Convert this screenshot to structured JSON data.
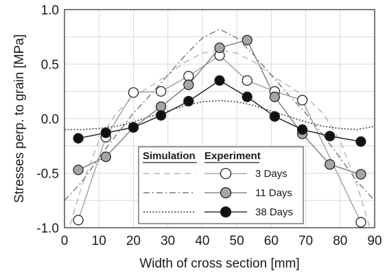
{
  "chart_data": {
    "type": "line",
    "title": "",
    "xlabel": "Width of cross section [mm]",
    "ylabel": "Stresses perp. to grain [MPa]",
    "xlim": [
      0,
      90
    ],
    "ylim": [
      -1.0,
      1.0
    ],
    "x_ticks": [
      "0",
      "10",
      "20",
      "30",
      "40",
      "50",
      "60",
      "70",
      "80",
      "90"
    ],
    "y_ticks": [
      "-1.0",
      "-0.5",
      "0.0",
      "0.5",
      "1.0"
    ],
    "grid": true,
    "legend": {
      "position": "bottom-center",
      "header_simulation": "Simulation",
      "header_experiment": "Experiment",
      "entries": [
        "3 Days",
        "11 Days",
        "38 Days"
      ]
    },
    "experiment_series": [
      {
        "name": "3 Days",
        "marker_fill": "#ffffff",
        "line_color": "#a8a8a8",
        "x": [
          4,
          12,
          20,
          28,
          36,
          45,
          53,
          61,
          69,
          86
        ],
        "y": [
          -0.93,
          -0.17,
          0.24,
          0.25,
          0.39,
          0.58,
          0.35,
          0.25,
          0.17,
          -0.95
        ]
      },
      {
        "name": "11 Days",
        "marker_fill": "#a6a6a6",
        "line_color": "#888888",
        "x": [
          4,
          12,
          20,
          28,
          36,
          45,
          53,
          61,
          69,
          77,
          86
        ],
        "y": [
          -0.47,
          -0.35,
          -0.08,
          0.11,
          0.31,
          0.65,
          0.72,
          0.2,
          -0.14,
          -0.42,
          -0.51
        ]
      },
      {
        "name": "38 Days",
        "marker_fill": "#111111",
        "line_color": "#333333",
        "x": [
          4,
          12,
          20,
          28,
          36,
          45,
          53,
          61,
          69,
          77,
          86
        ],
        "y": [
          -0.18,
          -0.13,
          -0.08,
          0.03,
          0.16,
          0.35,
          0.2,
          0.02,
          -0.1,
          -0.16,
          -0.21
        ]
      }
    ],
    "simulation_series": [
      {
        "name": "3 Days",
        "style": "dashed",
        "color": "#b8b8b8",
        "x": [
          0,
          5,
          10,
          15,
          20,
          25,
          30,
          35,
          40,
          45,
          50,
          55,
          60,
          65,
          70,
          75,
          80,
          85,
          90
        ],
        "y": [
          -1.15,
          -0.62,
          -0.2,
          0.05,
          0.2,
          0.3,
          0.4,
          0.52,
          0.6,
          0.63,
          0.6,
          0.52,
          0.4,
          0.3,
          0.2,
          0.05,
          -0.2,
          -0.62,
          -1.15
        ]
      },
      {
        "name": "11 Days",
        "style": "dash-dot",
        "color": "#7a7a7a",
        "x": [
          0,
          5,
          10,
          15,
          20,
          25,
          30,
          35,
          40,
          45,
          50,
          55,
          60,
          65,
          70,
          75,
          80,
          85,
          90
        ],
        "y": [
          -0.75,
          -0.58,
          -0.36,
          -0.15,
          0.05,
          0.22,
          0.4,
          0.58,
          0.74,
          0.82,
          0.74,
          0.58,
          0.4,
          0.22,
          0.05,
          -0.15,
          -0.36,
          -0.58,
          -0.75
        ]
      },
      {
        "name": "38 Days",
        "style": "dotted",
        "color": "#333333",
        "x": [
          0,
          5,
          10,
          15,
          20,
          25,
          30,
          35,
          40,
          45,
          50,
          55,
          60,
          65,
          70,
          75,
          80,
          85,
          90
        ],
        "y": [
          -0.1,
          -0.1,
          -0.09,
          -0.07,
          -0.03,
          0.02,
          0.07,
          0.12,
          0.155,
          0.165,
          0.155,
          0.12,
          0.07,
          0.02,
          -0.03,
          -0.07,
          -0.09,
          -0.1,
          -0.07
        ]
      }
    ]
  }
}
